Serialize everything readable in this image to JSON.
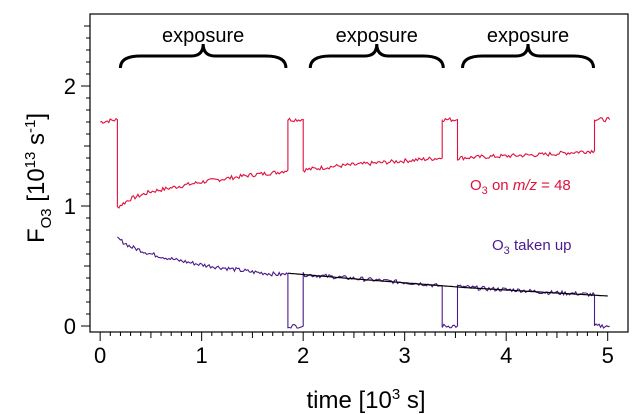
{
  "chart_data": {
    "type": "line",
    "title": "",
    "xlabel": {
      "text": "time [10",
      "sup": "3",
      "tail": " s]"
    },
    "ylabel": {
      "main": "F",
      "sub": "O3",
      "bracket": " [10",
      "sup1": "13",
      "mid": " s",
      "sup2": "-1",
      "end": "]"
    },
    "xlim": [
      -0.1,
      5.2
    ],
    "ylim": [
      -0.05,
      2.6
    ],
    "xticks": [
      0,
      1,
      2,
      3,
      4,
      5
    ],
    "xtick_labels": [
      "0",
      "1",
      "2",
      "3",
      "4",
      "5"
    ],
    "yticks": [
      0,
      1,
      2
    ],
    "ytick_labels": [
      "0",
      "1",
      "2"
    ],
    "grid": false,
    "exposure_periods": [
      {
        "label": "exposure",
        "start": 0.18,
        "end": 1.85
      },
      {
        "label": "exposure",
        "start": 2.05,
        "end": 3.4
      },
      {
        "label": "exposure",
        "start": 3.55,
        "end": 4.88
      }
    ],
    "series": [
      {
        "name_main": "O",
        "name_sub": "3",
        "name_mid": " on ",
        "name_ital": "m/z",
        "name_tail": " = 48",
        "color": "#e0103c",
        "x": [
          0,
          0.17,
          0.17,
          0.3,
          0.5,
          0.75,
          1.0,
          1.25,
          1.5,
          1.75,
          1.85,
          1.85,
          2.0,
          2.0,
          2.3,
          2.6,
          2.9,
          3.2,
          3.37,
          3.37,
          3.52,
          3.52,
          3.8,
          4.1,
          4.4,
          4.7,
          4.87,
          4.87,
          5.02
        ],
        "y": [
          1.7,
          1.72,
          0.99,
          1.06,
          1.12,
          1.16,
          1.2,
          1.23,
          1.26,
          1.28,
          1.3,
          1.72,
          1.72,
          1.3,
          1.33,
          1.35,
          1.37,
          1.39,
          1.4,
          1.72,
          1.72,
          1.4,
          1.41,
          1.42,
          1.43,
          1.45,
          1.46,
          1.72,
          1.72
        ]
      },
      {
        "name_main": "O",
        "name_sub": "3",
        "name_mid": " taken up",
        "color": "#4b1a8c",
        "x": [
          0.17,
          0.3,
          0.5,
          0.75,
          1.0,
          1.25,
          1.5,
          1.75,
          1.85,
          1.85,
          2.0,
          2.0,
          2.3,
          2.6,
          2.9,
          3.2,
          3.37,
          3.37,
          3.52,
          3.52,
          3.8,
          4.1,
          4.4,
          4.7,
          4.87,
          4.87,
          5.02
        ],
        "y": [
          0.73,
          0.66,
          0.6,
          0.55,
          0.51,
          0.48,
          0.45,
          0.43,
          0.43,
          0.0,
          0.0,
          0.43,
          0.41,
          0.39,
          0.37,
          0.35,
          0.33,
          0.0,
          0.0,
          0.33,
          0.31,
          0.3,
          0.28,
          0.27,
          0.26,
          0.0,
          0.0
        ]
      },
      {
        "name": "",
        "color": "#000000",
        "x": [
          1.85,
          2.4,
          3.0,
          3.6,
          4.2,
          4.8,
          5.0
        ],
        "y": [
          0.44,
          0.4,
          0.36,
          0.32,
          0.29,
          0.26,
          0.25
        ]
      }
    ]
  }
}
